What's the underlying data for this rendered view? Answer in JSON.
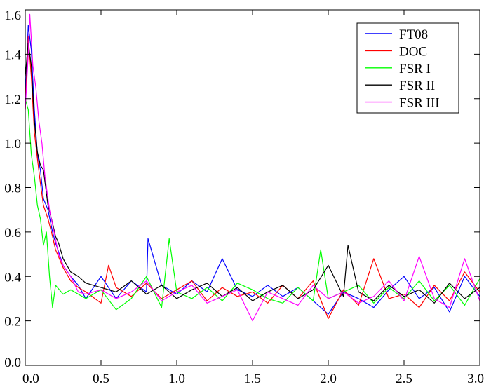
{
  "chart_data": {
    "type": "line",
    "title": "",
    "xlabel": "",
    "ylabel": "",
    "xlim": [
      0,
      3.0
    ],
    "ylim": [
      0,
      1.6
    ],
    "xticks": [
      "0.0",
      "0.5",
      "1.0",
      "1.5",
      "2.0",
      "2.5",
      "3.0"
    ],
    "yticks": [
      "0.0",
      "0.2",
      "0.4",
      "0.6",
      "0.8",
      "1.0",
      "1.2",
      "1.4",
      "1.6"
    ],
    "grid": false,
    "legend_position": "top-right",
    "series": [
      {
        "name": "FT08",
        "color": "#0000ff",
        "x": [
          0,
          0.02,
          0.04,
          0.06,
          0.08,
          0.1,
          0.12,
          0.15,
          0.18,
          0.2,
          0.25,
          0.3,
          0.35,
          0.4,
          0.5,
          0.6,
          0.7,
          0.8,
          0.81,
          0.9,
          1.0,
          1.1,
          1.2,
          1.3,
          1.4,
          1.5,
          1.6,
          1.7,
          1.8,
          1.9,
          2.0,
          2.1,
          2.2,
          2.3,
          2.4,
          2.5,
          2.6,
          2.7,
          2.8,
          2.9,
          3.0
        ],
        "y": [
          1.2,
          1.53,
          1.42,
          1.15,
          0.95,
          0.88,
          0.75,
          0.7,
          0.6,
          0.55,
          0.45,
          0.4,
          0.36,
          0.3,
          0.4,
          0.3,
          0.38,
          0.33,
          0.57,
          0.36,
          0.32,
          0.38,
          0.33,
          0.48,
          0.34,
          0.31,
          0.36,
          0.31,
          0.35,
          0.29,
          0.23,
          0.33,
          0.3,
          0.26,
          0.34,
          0.4,
          0.3,
          0.35,
          0.24,
          0.4,
          0.31
        ]
      },
      {
        "name": "DOC",
        "color": "#ff0000",
        "x": [
          0,
          0.02,
          0.04,
          0.06,
          0.08,
          0.1,
          0.12,
          0.15,
          0.18,
          0.2,
          0.25,
          0.3,
          0.35,
          0.4,
          0.5,
          0.55,
          0.6,
          0.7,
          0.8,
          0.9,
          1.0,
          1.1,
          1.2,
          1.3,
          1.4,
          1.5,
          1.6,
          1.7,
          1.8,
          1.9,
          2.0,
          2.1,
          2.2,
          2.3,
          2.4,
          2.5,
          2.6,
          2.7,
          2.8,
          2.9,
          3.0
        ],
        "y": [
          1.15,
          1.48,
          1.3,
          1.05,
          0.93,
          0.82,
          0.72,
          0.66,
          0.58,
          0.52,
          0.44,
          0.38,
          0.35,
          0.33,
          0.28,
          0.45,
          0.35,
          0.31,
          0.37,
          0.3,
          0.34,
          0.38,
          0.29,
          0.35,
          0.31,
          0.33,
          0.28,
          0.36,
          0.3,
          0.38,
          0.21,
          0.34,
          0.27,
          0.48,
          0.3,
          0.32,
          0.26,
          0.36,
          0.29,
          0.42,
          0.33
        ]
      },
      {
        "name": "FSR I",
        "color": "#00ff00",
        "x": [
          0,
          0.02,
          0.04,
          0.06,
          0.08,
          0.1,
          0.12,
          0.14,
          0.16,
          0.18,
          0.2,
          0.25,
          0.3,
          0.4,
          0.5,
          0.6,
          0.7,
          0.8,
          0.9,
          0.95,
          1.0,
          1.1,
          1.2,
          1.3,
          1.4,
          1.5,
          1.6,
          1.7,
          1.8,
          1.9,
          1.95,
          2.0,
          2.1,
          2.2,
          2.3,
          2.4,
          2.5,
          2.6,
          2.7,
          2.8,
          2.9,
          3.0
        ],
        "y": [
          1.2,
          1.15,
          0.95,
          0.85,
          0.72,
          0.66,
          0.54,
          0.6,
          0.4,
          0.26,
          0.36,
          0.32,
          0.34,
          0.3,
          0.34,
          0.25,
          0.3,
          0.4,
          0.26,
          0.57,
          0.33,
          0.3,
          0.35,
          0.29,
          0.37,
          0.34,
          0.3,
          0.28,
          0.35,
          0.29,
          0.52,
          0.3,
          0.33,
          0.36,
          0.28,
          0.35,
          0.3,
          0.38,
          0.29,
          0.36,
          0.27,
          0.39
        ]
      },
      {
        "name": "FSR II",
        "color": "#000000",
        "x": [
          0,
          0.02,
          0.04,
          0.06,
          0.08,
          0.1,
          0.12,
          0.15,
          0.18,
          0.2,
          0.22,
          0.25,
          0.3,
          0.35,
          0.4,
          0.5,
          0.6,
          0.7,
          0.8,
          0.9,
          1.0,
          1.1,
          1.2,
          1.3,
          1.4,
          1.5,
          1.6,
          1.7,
          1.8,
          1.9,
          2.0,
          2.1,
          2.13,
          2.2,
          2.3,
          2.4,
          2.5,
          2.6,
          2.7,
          2.8,
          2.9,
          3.0
        ],
        "y": [
          1.3,
          1.45,
          1.35,
          1.1,
          0.96,
          0.9,
          0.88,
          0.72,
          0.64,
          0.58,
          0.55,
          0.48,
          0.42,
          0.4,
          0.37,
          0.35,
          0.33,
          0.38,
          0.32,
          0.36,
          0.3,
          0.34,
          0.37,
          0.31,
          0.35,
          0.29,
          0.33,
          0.36,
          0.3,
          0.34,
          0.45,
          0.31,
          0.54,
          0.33,
          0.29,
          0.36,
          0.31,
          0.34,
          0.28,
          0.37,
          0.3,
          0.35
        ]
      },
      {
        "name": "FSR III",
        "color": "#ff00ff",
        "x": [
          0,
          0.02,
          0.03,
          0.05,
          0.07,
          0.09,
          0.11,
          0.13,
          0.16,
          0.19,
          0.22,
          0.25,
          0.3,
          0.35,
          0.4,
          0.5,
          0.6,
          0.7,
          0.8,
          0.9,
          1.0,
          1.1,
          1.2,
          1.3,
          1.4,
          1.5,
          1.6,
          1.7,
          1.8,
          1.9,
          2.0,
          2.1,
          2.2,
          2.3,
          2.4,
          2.5,
          2.6,
          2.7,
          2.8,
          2.9,
          3.0
        ],
        "y": [
          1.15,
          1.4,
          1.58,
          1.35,
          1.25,
          1.1,
          1.0,
          0.85,
          0.7,
          0.6,
          0.5,
          0.45,
          0.4,
          0.33,
          0.32,
          0.34,
          0.3,
          0.33,
          0.38,
          0.29,
          0.33,
          0.36,
          0.28,
          0.31,
          0.34,
          0.2,
          0.33,
          0.3,
          0.27,
          0.36,
          0.3,
          0.33,
          0.28,
          0.31,
          0.38,
          0.29,
          0.49,
          0.3,
          0.26,
          0.48,
          0.29
        ]
      }
    ]
  }
}
